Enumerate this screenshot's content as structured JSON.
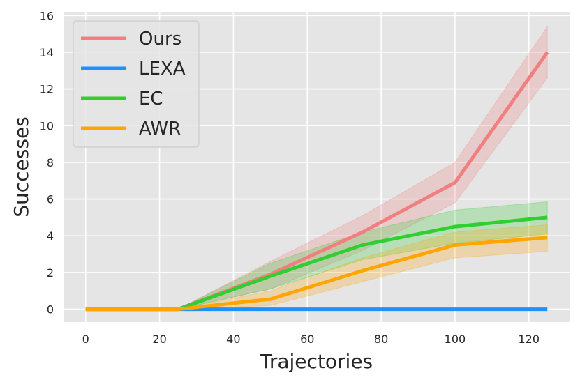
{
  "chart_data": {
    "type": "line",
    "xlabel": "Trajectories",
    "ylabel": "Successes",
    "xlim": [
      -6,
      131
    ],
    "ylim": [
      -0.7,
      16.2
    ],
    "x_ticks": [
      0,
      20,
      40,
      60,
      80,
      100,
      120
    ],
    "y_ticks": [
      0,
      2,
      4,
      6,
      8,
      10,
      12,
      14,
      16
    ],
    "grid": true,
    "background": "#e5e5e5",
    "legend_position": "top-left",
    "x": [
      0,
      25,
      50,
      75,
      100,
      125
    ],
    "series": [
      {
        "name": "Ours",
        "color": "#f08080",
        "values": [
          0,
          0,
          1.9,
          4.2,
          6.9,
          14.0
        ],
        "lower": [
          0,
          0,
          1.1,
          3.2,
          5.8,
          12.6
        ],
        "upper": [
          0,
          0,
          2.6,
          5.1,
          8.0,
          15.4
        ]
      },
      {
        "name": "LEXA",
        "color": "#1e90ff",
        "values": [
          0,
          0,
          0,
          0,
          0,
          0
        ],
        "lower": [
          0,
          0,
          0,
          0,
          0,
          0
        ],
        "upper": [
          0,
          0,
          0,
          0,
          0,
          0
        ]
      },
      {
        "name": "EC",
        "color": "#32cd32",
        "values": [
          0,
          0,
          1.8,
          3.5,
          4.5,
          5.0
        ],
        "lower": [
          0,
          0,
          1.1,
          2.7,
          3.6,
          4.1
        ],
        "upper": [
          0,
          0,
          2.5,
          4.2,
          5.4,
          5.85
        ]
      },
      {
        "name": "AWR",
        "color": "#ffa500",
        "values": [
          0,
          0,
          0.55,
          2.1,
          3.5,
          3.9
        ],
        "lower": [
          0,
          0,
          0.2,
          1.5,
          2.8,
          3.15
        ],
        "upper": [
          0,
          0,
          1.0,
          2.8,
          4.2,
          4.6
        ]
      }
    ]
  }
}
